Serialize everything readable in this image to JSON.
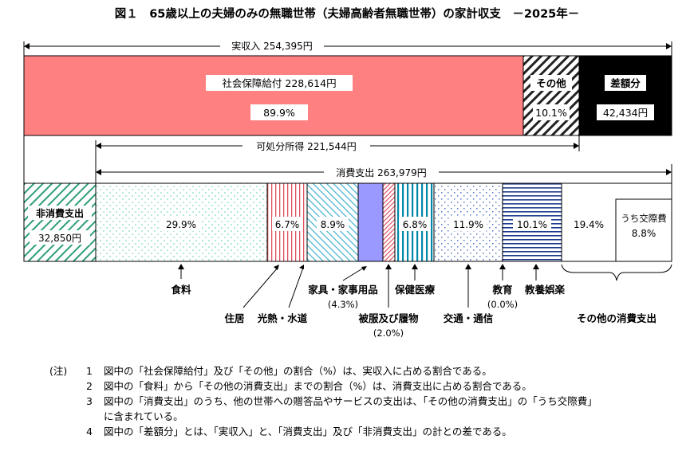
{
  "title": "図１　65歳以上の夫婦のみの無職世帯（夫婦高齢者無職世帯）の家計収支　－2025年－",
  "chart_data": {
    "type": "bar",
    "unit": "円",
    "income": {
      "label": "実収入",
      "value": 254395,
      "value_text": "254,395円",
      "segments": [
        {
          "key": "social",
          "label": "社会保障給付",
          "value": 228614,
          "value_text": "228,614円",
          "pct_text": "89.9%",
          "color": "#ff8080"
        },
        {
          "key": "other",
          "label": "その他",
          "pct_text": "10.1%",
          "pct": 10.1
        },
        {
          "key": "diff",
          "label": "差額分",
          "value": 42434,
          "value_text": "42,434円",
          "color": "#000000"
        }
      ]
    },
    "disposable": {
      "label": "可処分所得",
      "value": 221544,
      "value_text": "221,544円"
    },
    "consumption": {
      "label": "消費支出",
      "value": 263979,
      "value_text": "263,979円",
      "non_consumption": {
        "label": "非消費支出",
        "value": 32850,
        "value_text": "32,850円",
        "color": "#2e9e7a"
      },
      "segments": [
        {
          "key": "food",
          "label": "食料",
          "pct": 29.9,
          "pct_text": "29.9%",
          "color": "#7fd9c4"
        },
        {
          "key": "housing",
          "label": "住居",
          "pct": 6.7,
          "pct_text": "6.7%",
          "color": "#e05060"
        },
        {
          "key": "utilities",
          "label": "光熱・水道",
          "pct": 8.9,
          "pct_text": "8.9%",
          "color": "#40b0d0"
        },
        {
          "key": "furniture",
          "label": "家具・家事用品",
          "pct": 4.3,
          "pct_text": "(4.3%)",
          "color": "#9999ff"
        },
        {
          "key": "clothing",
          "label": "被服及び履物",
          "pct": 2.0,
          "pct_text": "(2.0%)",
          "color": "#e05060"
        },
        {
          "key": "medical",
          "label": "保健医療",
          "pct": 6.8,
          "pct_text": "6.8%",
          "color": "#0088aa"
        },
        {
          "key": "transport",
          "label": "交通・通信",
          "pct": 11.9,
          "pct_text": "11.9%",
          "color": "#5577cc"
        },
        {
          "key": "education",
          "label": "教育",
          "pct": 0.0,
          "pct_text": "(0.0%)",
          "color": "#333333"
        },
        {
          "key": "recreation",
          "label": "教養娯楽",
          "pct": 10.1,
          "pct_text": "10.1%",
          "color": "#1a3c8c"
        },
        {
          "key": "other_cons",
          "label": "その他の消費支出",
          "pct": 19.4,
          "pct_text": "19.4%",
          "sub_label": "うち交際費",
          "sub_pct": 8.8,
          "sub_pct_text": "8.8%"
        }
      ]
    }
  },
  "notes": {
    "prefix": "(注)",
    "items": [
      {
        "num": "1",
        "text": "図中の「社会保障給付」及び「その他」の割合（%）は、実収入に占める割合である。"
      },
      {
        "num": "2",
        "text": "図中の「食料」から「その他の消費支出」までの割合（%）は、消費支出に占める割合である。"
      },
      {
        "num": "3",
        "text": "図中の「消費支出」のうち、他の世帯への贈答品やサービスの支出は、「その他の消費支出」の「うち交際費」",
        "cont": "に含まれている。"
      },
      {
        "num": "4",
        "text": "図中の「差額分」とは、「実収入」と、「消費支出」及び「非消費支出」の計との差である。"
      }
    ]
  }
}
